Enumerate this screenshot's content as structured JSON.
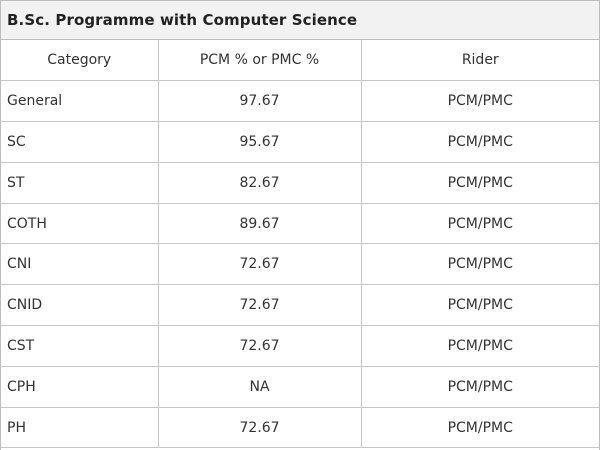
{
  "table": {
    "title": "B.Sc. Programme with Computer Science",
    "headers": [
      "Category",
      "PCM % or PMC %",
      "Rider"
    ],
    "rows": [
      {
        "category": "General",
        "score": "97.67",
        "rider": "PCM/PMC"
      },
      {
        "category": "SC",
        "score": "95.67",
        "rider": "PCM/PMC"
      },
      {
        "category": "ST",
        "score": "82.67",
        "rider": "PCM/PMC"
      },
      {
        "category": "COTH",
        "score": "89.67",
        "rider": "PCM/PMC"
      },
      {
        "category": "CNI",
        "score": "72.67",
        "rider": "PCM/PMC"
      },
      {
        "category": "CNID",
        "score": "72.67",
        "rider": "PCM/PMC"
      },
      {
        "category": "CST",
        "score": "72.67",
        "rider": "PCM/PMC"
      },
      {
        "category": "CPH",
        "score": "NA",
        "rider": "PCM/PMC"
      },
      {
        "category": "PH",
        "score": "72.67",
        "rider": "PCM/PMC"
      }
    ]
  }
}
